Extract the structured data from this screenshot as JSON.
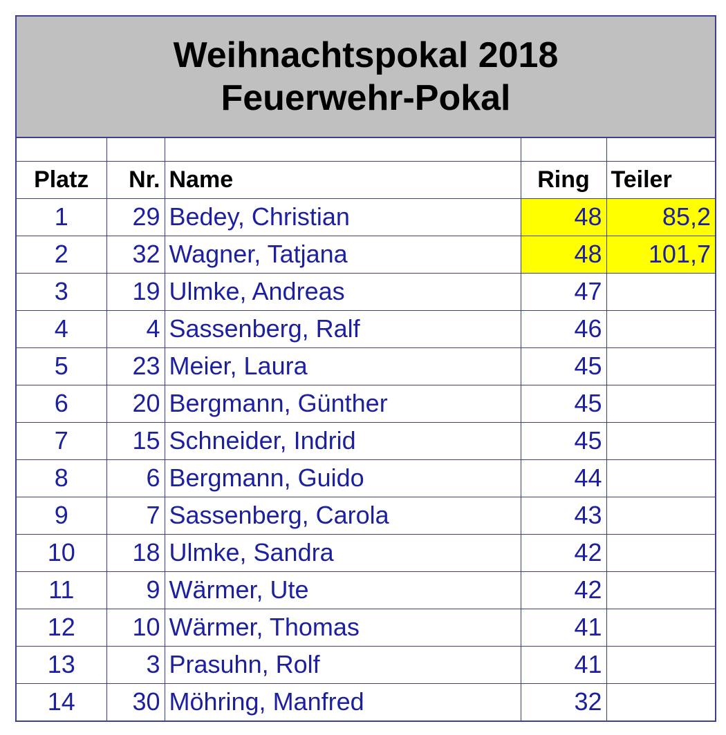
{
  "title": {
    "line1": "Weihnachtspokal 2018",
    "line2": "Feuerwehr-Pokal"
  },
  "columns": {
    "platz": "Platz",
    "nr": "Nr.",
    "name": "Name",
    "ring": "Ring",
    "teiler": "Teiler"
  },
  "colors": {
    "highlight": "#ffff00",
    "title_bg": "#c0c0c0",
    "text_blue": "#1b1fa0",
    "grid": "#3b3f8f"
  },
  "rows": [
    {
      "platz": "1",
      "nr": "29",
      "name": "Bedey, Christian",
      "ring": "48",
      "teiler": "85,2",
      "highlight": true
    },
    {
      "platz": "2",
      "nr": "32",
      "name": "Wagner, Tatjana",
      "ring": "48",
      "teiler": "101,7",
      "highlight": true
    },
    {
      "platz": "3",
      "nr": "19",
      "name": "Ulmke, Andreas",
      "ring": "47",
      "teiler": "",
      "highlight": false
    },
    {
      "platz": "4",
      "nr": "4",
      "name": "Sassenberg, Ralf",
      "ring": "46",
      "teiler": "",
      "highlight": false
    },
    {
      "platz": "5",
      "nr": "23",
      "name": "Meier, Laura",
      "ring": "45",
      "teiler": "",
      "highlight": false
    },
    {
      "platz": "6",
      "nr": "20",
      "name": "Bergmann, Günther",
      "ring": "45",
      "teiler": "",
      "highlight": false
    },
    {
      "platz": "7",
      "nr": "15",
      "name": "Schneider, Indrid",
      "ring": "45",
      "teiler": "",
      "highlight": false
    },
    {
      "platz": "8",
      "nr": "6",
      "name": "Bergmann, Guido",
      "ring": "44",
      "teiler": "",
      "highlight": false
    },
    {
      "platz": "9",
      "nr": "7",
      "name": "Sassenberg, Carola",
      "ring": "43",
      "teiler": "",
      "highlight": false
    },
    {
      "platz": "10",
      "nr": "18",
      "name": "Ulmke, Sandra",
      "ring": "42",
      "teiler": "",
      "highlight": false
    },
    {
      "platz": "11",
      "nr": "9",
      "name": "Wärmer, Ute",
      "ring": "42",
      "teiler": "",
      "highlight": false
    },
    {
      "platz": "12",
      "nr": "10",
      "name": "Wärmer, Thomas",
      "ring": "41",
      "teiler": "",
      "highlight": false
    },
    {
      "platz": "13",
      "nr": "3",
      "name": "Prasuhn, Rolf",
      "ring": "41",
      "teiler": "",
      "highlight": false
    },
    {
      "platz": "14",
      "nr": "30",
      "name": "Möhring, Manfred",
      "ring": "32",
      "teiler": "",
      "highlight": false
    }
  ]
}
